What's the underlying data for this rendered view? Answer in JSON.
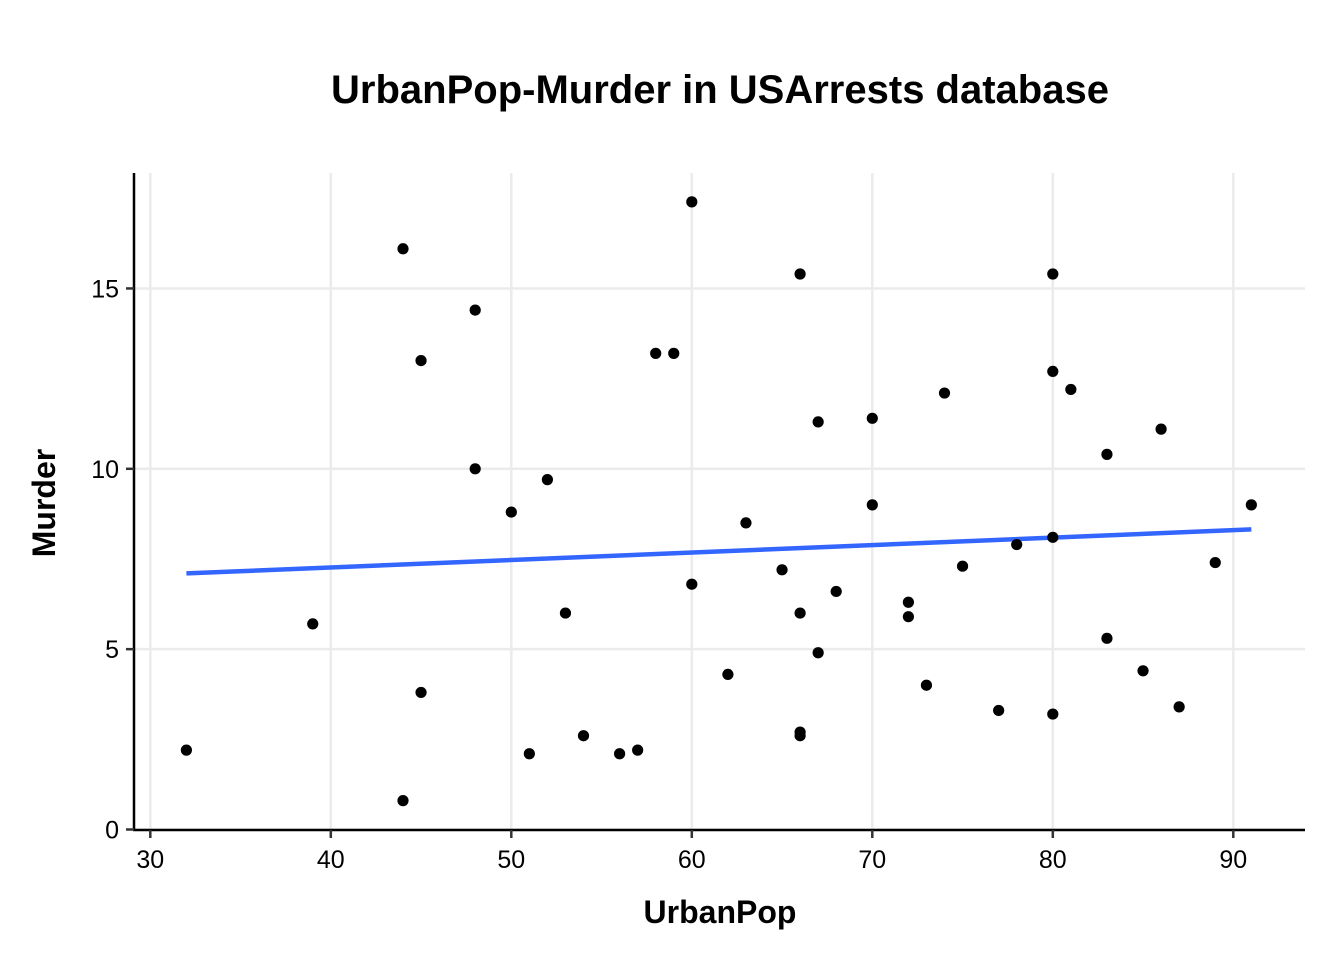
{
  "chart_data": {
    "type": "scatter",
    "title": "UrbanPop-Murder in USArrests database",
    "xlabel": "UrbanPop",
    "ylabel": "Murder",
    "xlim": [
      29,
      94
    ],
    "ylim": [
      0,
      17.8
    ],
    "x_ticks": [
      30,
      40,
      50,
      60,
      70,
      80,
      90
    ],
    "y_ticks": [
      0,
      5,
      10,
      15
    ],
    "grid": true,
    "legend": "none",
    "colors": {
      "points": "#000000",
      "trend_line": "#3366FF",
      "grid": "#EBEBEB",
      "axis": "#000000"
    },
    "points": [
      {
        "x": 58,
        "y": 13.2
      },
      {
        "x": 48,
        "y": 10.0
      },
      {
        "x": 80,
        "y": 8.1
      },
      {
        "x": 50,
        "y": 8.8
      },
      {
        "x": 91,
        "y": 9.0
      },
      {
        "x": 78,
        "y": 7.9
      },
      {
        "x": 77,
        "y": 3.3
      },
      {
        "x": 72,
        "y": 5.9
      },
      {
        "x": 80,
        "y": 15.4
      },
      {
        "x": 60,
        "y": 17.4
      },
      {
        "x": 83,
        "y": 5.3
      },
      {
        "x": 54,
        "y": 2.6
      },
      {
        "x": 83,
        "y": 10.4
      },
      {
        "x": 65,
        "y": 7.2
      },
      {
        "x": 57,
        "y": 2.2
      },
      {
        "x": 66,
        "y": 6.0
      },
      {
        "x": 52,
        "y": 9.7
      },
      {
        "x": 66,
        "y": 15.4
      },
      {
        "x": 51,
        "y": 2.1
      },
      {
        "x": 67,
        "y": 11.3
      },
      {
        "x": 85,
        "y": 4.4
      },
      {
        "x": 74,
        "y": 12.1
      },
      {
        "x": 66,
        "y": 2.7
      },
      {
        "x": 44,
        "y": 16.1
      },
      {
        "x": 70,
        "y": 9.0
      },
      {
        "x": 53,
        "y": 6.0
      },
      {
        "x": 62,
        "y": 4.3
      },
      {
        "x": 81,
        "y": 12.2
      },
      {
        "x": 56,
        "y": 2.1
      },
      {
        "x": 89,
        "y": 7.4
      },
      {
        "x": 70,
        "y": 11.4
      },
      {
        "x": 86,
        "y": 11.1
      },
      {
        "x": 45,
        "y": 13.0
      },
      {
        "x": 44,
        "y": 0.8
      },
      {
        "x": 75,
        "y": 7.3
      },
      {
        "x": 68,
        "y": 6.6
      },
      {
        "x": 67,
        "y": 4.9
      },
      {
        "x": 72,
        "y": 6.3
      },
      {
        "x": 87,
        "y": 3.4
      },
      {
        "x": 48,
        "y": 14.4
      },
      {
        "x": 45,
        "y": 3.8
      },
      {
        "x": 59,
        "y": 13.2
      },
      {
        "x": 80,
        "y": 12.7
      },
      {
        "x": 80,
        "y": 3.2
      },
      {
        "x": 32,
        "y": 2.2
      },
      {
        "x": 63,
        "y": 8.5
      },
      {
        "x": 73,
        "y": 4.0
      },
      {
        "x": 39,
        "y": 5.7
      },
      {
        "x": 66,
        "y": 2.6
      },
      {
        "x": 60,
        "y": 6.8
      }
    ],
    "trend_line": {
      "x": [
        32,
        91
      ],
      "y": [
        7.1,
        8.32
      ]
    }
  }
}
